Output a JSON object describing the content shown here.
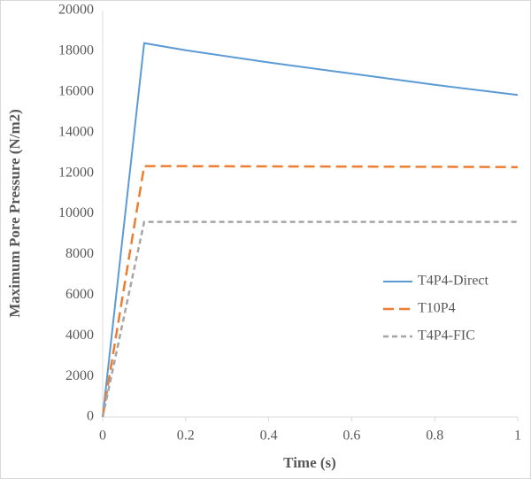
{
  "chart_data": {
    "type": "line",
    "x_label": "Time (s)",
    "y_label": "Maximum Pore Pressure (N/m2)",
    "x": [
      0,
      0.1,
      0.2,
      0.4,
      0.6,
      0.8,
      1
    ],
    "series": [
      {
        "name": "T4P4-Direct",
        "color": "#5b9bd5",
        "dash": "solid",
        "values": [
          0,
          18400,
          18050,
          17450,
          16900,
          16350,
          15850
        ]
      },
      {
        "name": "T10P4",
        "color": "#ed7d31",
        "dash": "dashed",
        "values": [
          0,
          12350,
          12345,
          12335,
          12325,
          12315,
          12300
        ]
      },
      {
        "name": "T4P4-FIC",
        "color": "#a5a5a5",
        "dash": "dashed",
        "values": [
          0,
          9600,
          9600,
          9600,
          9600,
          9600,
          9600
        ]
      }
    ],
    "xlim": [
      0,
      1
    ],
    "xticks": [
      0,
      0.2,
      0.4,
      0.6,
      0.8,
      1
    ],
    "ylim": [
      0,
      20000
    ],
    "yticks": [
      0,
      2000,
      4000,
      6000,
      8000,
      10000,
      12000,
      14000,
      16000,
      18000,
      20000
    ],
    "grid": false,
    "legend": "right"
  }
}
